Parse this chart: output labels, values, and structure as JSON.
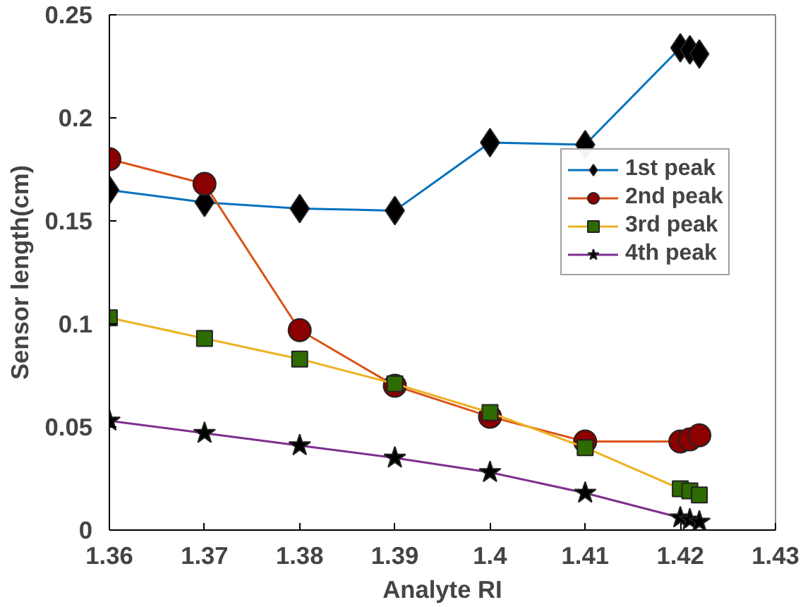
{
  "chart_data": {
    "type": "line",
    "xlabel": "Analyte RI",
    "ylabel": "Sensor length(cm)",
    "xlim": [
      1.36,
      1.43
    ],
    "ylim": [
      0,
      0.25
    ],
    "xticks": [
      1.36,
      1.37,
      1.38,
      1.39,
      {
        "value": 1.4,
        "label": "1.4"
      },
      1.41,
      1.42,
      1.43
    ],
    "yticks": [
      0,
      0.05,
      {
        "value": 0.1,
        "label": "0.1"
      },
      0.15,
      {
        "value": 0.2,
        "label": "0.2"
      },
      0.25
    ],
    "x": [
      1.36,
      1.37,
      1.38,
      1.39,
      1.4,
      1.41,
      1.42,
      1.421,
      1.422
    ],
    "grid": false,
    "legend": "right",
    "series": [
      {
        "name": "1st peak",
        "color": "#0072bd",
        "marker": "diamond",
        "colors": [
          "#000000",
          "#000000",
          "#000000",
          "#000000",
          "#000000",
          "#000000",
          "#000000",
          "#000000",
          "#000000"
        ],
        "values": [
          0.165,
          0.159,
          0.156,
          0.155,
          0.188,
          0.187,
          0.234,
          0.233,
          0.231
        ]
      },
      {
        "name": "2nd peak",
        "color": "#d95319",
        "marker": "circle",
        "colors": [
          "#8b0000",
          "#8b0000",
          "#8b0000",
          "#8b0000",
          "#8b0000",
          "#8b0000",
          "#8b0000",
          "#8b0000",
          "#8b0000"
        ],
        "values": [
          0.18,
          0.168,
          0.097,
          0.07,
          0.055,
          0.043,
          0.043,
          0.044,
          0.046
        ]
      },
      {
        "name": "3rd peak",
        "color": "#edb120",
        "marker": "square",
        "colors": [
          "#2e6b00",
          "#2e6b00",
          "#2e6b00",
          "#2e6b00",
          "#2e6b00",
          "#2e6b00",
          "#2e6b00",
          "#2e6b00",
          "#2e6b00"
        ],
        "values": [
          0.103,
          0.093,
          0.083,
          0.071,
          0.057,
          0.04,
          0.02,
          0.019,
          0.017
        ]
      },
      {
        "name": "4th peak",
        "color": "#7e2f8e",
        "marker": "star",
        "colors": [
          "#000000",
          "#000000",
          "#000000",
          "#000000",
          "#000000",
          "#000000",
          "#000000",
          "#000000",
          "#000000"
        ],
        "values": [
          0.053,
          0.047,
          0.041,
          0.035,
          0.028,
          0.018,
          0.006,
          0.005,
          0.004
        ]
      }
    ]
  }
}
